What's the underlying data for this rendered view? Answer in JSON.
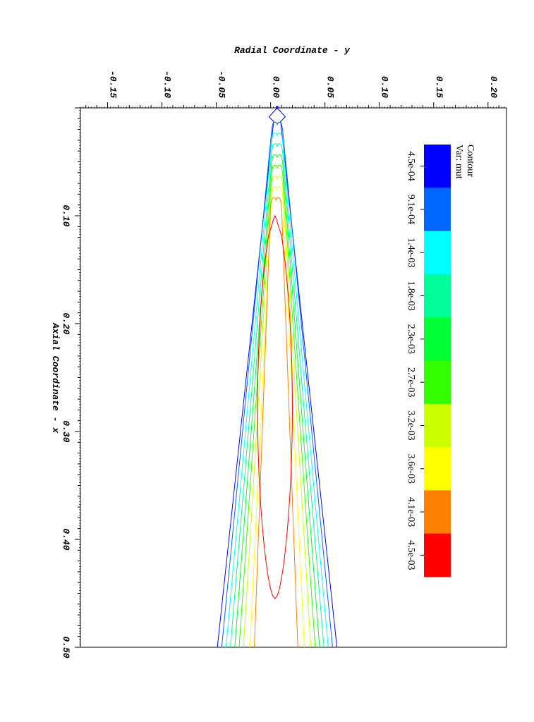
{
  "chart_data": {
    "type": "contour",
    "title": "",
    "xlabel": "Axial Coordinate - x",
    "ylabel": "Radial Coordinate - y",
    "x_ticks": [
      "0.10",
      "0.20",
      "0.30",
      "0.40",
      "0.50"
    ],
    "x_tick_values": [
      0.1,
      0.2,
      0.3,
      0.4,
      0.5
    ],
    "y_ticks": [
      "-0.15",
      "-0.10",
      "-0.05",
      "0.00",
      "0.05",
      "0.10",
      "0.15",
      "0.20"
    ],
    "y_tick_values": [
      -0.15,
      -0.1,
      -0.05,
      0.0,
      0.05,
      0.1,
      0.15,
      0.2
    ],
    "xlim": [
      0.0,
      0.5
    ],
    "ylim": [
      -0.175,
      0.217
    ],
    "grid": false,
    "legend": {
      "title_line1": "Contour",
      "title_line2": "Var: mut",
      "placement": "top-right",
      "levels": [
        {
          "label": "4.5e-04",
          "value": 0.00045,
          "color": "#0000ff"
        },
        {
          "label": "9.1e-04",
          "value": 0.00091,
          "color": "#0066ff"
        },
        {
          "label": "1.4e-03",
          "value": 0.0014,
          "color": "#00ffff"
        },
        {
          "label": "1.8e-03",
          "value": 0.0018,
          "color": "#00ff99"
        },
        {
          "label": "2.3e-03",
          "value": 0.0023,
          "color": "#00ff33"
        },
        {
          "label": "2.7e-03",
          "value": 0.0027,
          "color": "#33ff00"
        },
        {
          "label": "3.2e-03",
          "value": 0.0032,
          "color": "#ccff00"
        },
        {
          "label": "3.6e-03",
          "value": 0.0036,
          "color": "#ffff00"
        },
        {
          "label": "4.1e-03",
          "value": 0.0041,
          "color": "#ff8000"
        },
        {
          "label": "4.5e-03",
          "value": 0.0045,
          "color": "#ff0000"
        }
      ]
    },
    "contours": [
      {
        "level": "4.5e-04",
        "type": "band",
        "color": "#0000ff",
        "x": [
          0.0,
          0.01,
          0.02,
          0.5
        ],
        "half_width": [
          0.0,
          0.009,
          0.004,
          0.055
        ],
        "center": 0.006
      },
      {
        "level": "9.1e-04",
        "type": "band",
        "color": "#0066ff",
        "x": [
          0.015,
          0.02,
          0.5
        ],
        "half_width": [
          0.004,
          0.005,
          0.051
        ],
        "center": 0.006
      },
      {
        "level": "1.4e-03",
        "type": "band",
        "color": "#00ffff",
        "x": [
          0.025,
          0.03,
          0.5
        ],
        "half_width": [
          0.004,
          0.005,
          0.047
        ],
        "center": 0.006
      },
      {
        "level": "1.8e-03",
        "type": "band",
        "color": "#00ff99",
        "x": [
          0.035,
          0.04,
          0.5
        ],
        "half_width": [
          0.004,
          0.005,
          0.043
        ],
        "center": 0.006
      },
      {
        "level": "2.3e-03",
        "type": "band",
        "color": "#00ff33",
        "x": [
          0.045,
          0.05,
          0.5
        ],
        "half_width": [
          0.004,
          0.005,
          0.039
        ],
        "center": 0.006
      },
      {
        "level": "2.7e-03",
        "type": "band",
        "color": "#33ff00",
        "x": [
          0.055,
          0.06,
          0.5
        ],
        "half_width": [
          0.004,
          0.005,
          0.035
        ],
        "center": 0.006
      },
      {
        "level": "3.2e-03",
        "type": "band",
        "color": "#ccff00",
        "x": [
          0.065,
          0.07,
          0.5
        ],
        "half_width": [
          0.004,
          0.005,
          0.031
        ],
        "center": 0.006
      },
      {
        "level": "3.6e-03",
        "type": "band",
        "color": "#ffff00",
        "x": [
          0.075,
          0.08,
          0.5
        ],
        "half_width": [
          0.004,
          0.005,
          0.025
        ],
        "center": 0.006
      },
      {
        "level": "4.1e-03",
        "type": "band",
        "color": "#ff8000",
        "x": [
          0.085,
          0.09,
          0.5
        ],
        "half_width": [
          0.004,
          0.005,
          0.02
        ],
        "center": 0.005
      },
      {
        "level": "4.5e-03",
        "type": "closed",
        "color": "#ff0000",
        "x_start": 0.1,
        "x_end": 0.455,
        "max_half_width": 0.016,
        "center": 0.004
      }
    ]
  }
}
